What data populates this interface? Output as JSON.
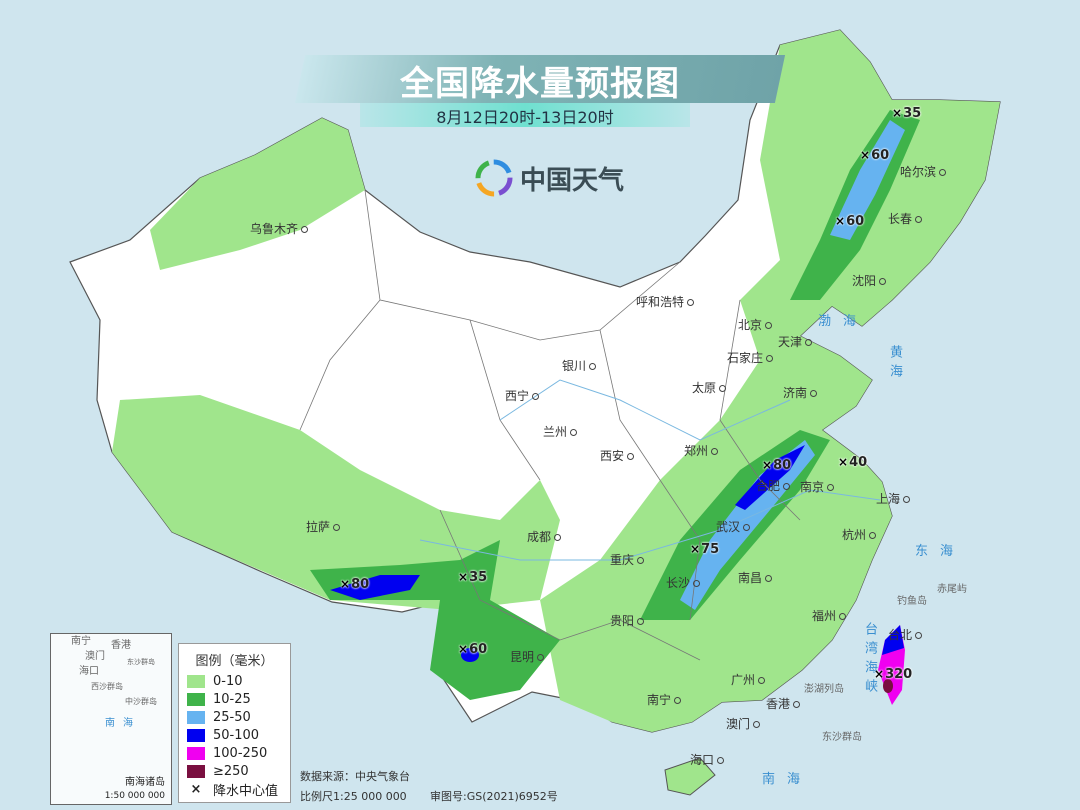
{
  "header": {
    "title": "全国降水量预报图",
    "subtitle": "8月12日20时-13日20时",
    "logo_text": "中国天气"
  },
  "legend": {
    "title": "图例（毫米）",
    "items": [
      {
        "label": "0-10",
        "color": "#a0e58c"
      },
      {
        "label": "10-25",
        "color": "#3fb34a"
      },
      {
        "label": "25-50",
        "color": "#66b3f0"
      },
      {
        "label": "50-100",
        "color": "#0000f0"
      },
      {
        "label": "100-250",
        "color": "#f000f0"
      },
      {
        "label": "≥250",
        "color": "#7a0f40"
      }
    ],
    "center_marker": {
      "symbol": "×",
      "label": "降水中心值"
    }
  },
  "footer": {
    "source": "数据来源：中央气象台",
    "scale": "比例尺1:25 000 000",
    "approval": "审图号:GS(2021)6952号"
  },
  "inset": {
    "title": "南海诸岛",
    "scale": "1:50 000 000",
    "labels": [
      "南宁",
      "香港",
      "澳门",
      "海口",
      "东沙群岛",
      "西沙群岛",
      "中沙群岛",
      "南海"
    ]
  },
  "cities": [
    "乌鲁木齐",
    "呼和浩特",
    "北京",
    "天津",
    "石家庄",
    "太原",
    "济南",
    "银川",
    "西宁",
    "兰州",
    "西安",
    "郑州",
    "拉萨",
    "成都",
    "重庆",
    "武汉",
    "合肥",
    "南京",
    "上海",
    "杭州",
    "长沙",
    "南昌",
    "贵阳",
    "昆明",
    "福州",
    "台北",
    "南宁",
    "广州",
    "香港",
    "澳门",
    "海口",
    "哈尔滨",
    "长春",
    "沈阳"
  ],
  "seas": [
    "渤海",
    "黄海",
    "东海",
    "南海",
    "台湾海峡"
  ],
  "islands": [
    "钓鱼岛",
    "赤尾屿",
    "东沙群岛",
    "澎湖列岛"
  ],
  "rain_centers": [
    "35",
    "60",
    "60",
    "80",
    "40",
    "75",
    "80",
    "35",
    "60",
    "320"
  ]
}
